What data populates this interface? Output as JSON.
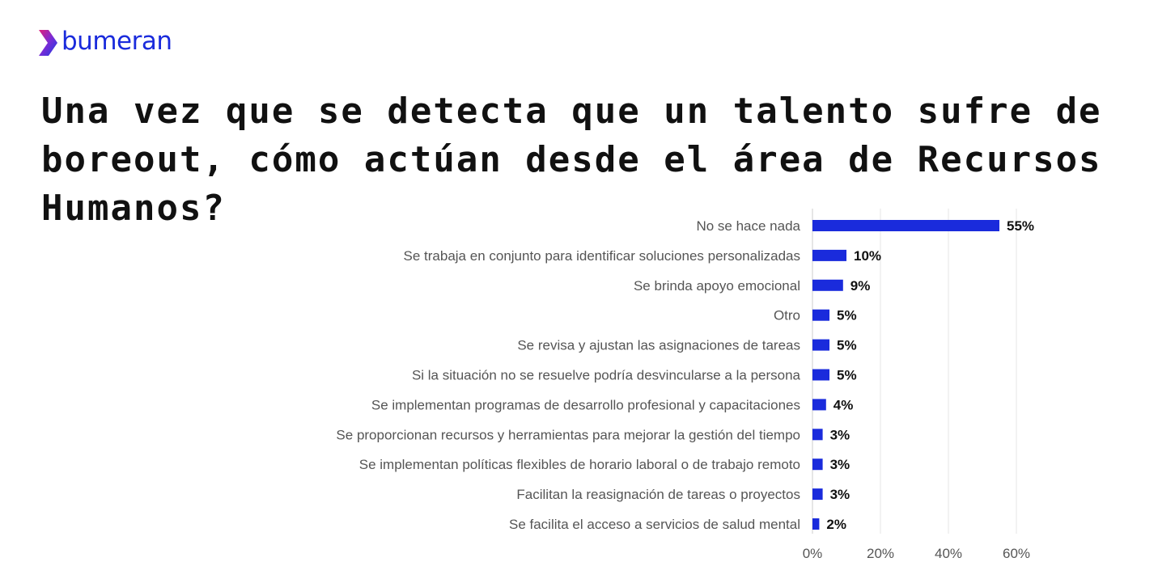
{
  "brand": {
    "name": "bumeran",
    "color": "#1a2bdc",
    "accent_gradient": [
      "#e0207a",
      "#7a2bd6",
      "#1a3be0"
    ]
  },
  "title": "Una vez que se detecta que un talento sufre de boreout, cómo actúan desde el área de Recursos Humanos?",
  "chart_data": {
    "type": "bar",
    "orientation": "horizontal",
    "categories": [
      "No se hace nada",
      "Se trabaja en conjunto para identificar soluciones personalizadas",
      "Se brinda apoyo emocional",
      "Otro",
      "Se revisa y ajustan las asignaciones de tareas",
      "Si la situación no se resuelve podría desvincularse a la persona",
      "Se implementan programas de desarrollo profesional y capacitaciones",
      "Se proporcionan recursos y herramientas para mejorar la gestión del tiempo",
      "Se implementan políticas flexibles de horario laboral o de trabajo remoto",
      "Facilitan la reasignación de tareas o proyectos",
      "Se facilita el acceso a servicios de salud mental"
    ],
    "values": [
      55,
      10,
      9,
      5,
      5,
      5,
      4,
      3,
      3,
      3,
      2
    ],
    "value_labels": [
      "55%",
      "10%",
      "9%",
      "5%",
      "5%",
      "5%",
      "4%",
      "3%",
      "3%",
      "3%",
      "2%"
    ],
    "xlim": [
      0,
      60
    ],
    "x_ticks": [
      0,
      20,
      40,
      60
    ],
    "x_tick_labels": [
      "0%",
      "20%",
      "40%",
      "60%"
    ],
    "bar_color": "#1a2bdc",
    "grid": true,
    "legend": "none"
  }
}
